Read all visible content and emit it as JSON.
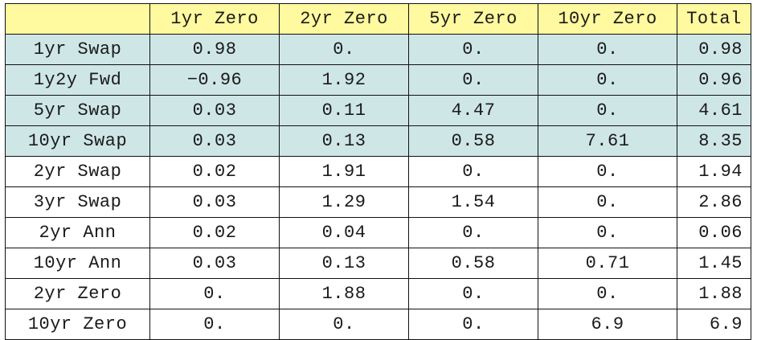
{
  "table": {
    "columns": [
      "",
      "1yr Zero",
      "2yr Zero",
      "5yr Zero",
      "10yr Zero",
      "Total"
    ],
    "rows": [
      {
        "label": "1yr Swap",
        "cells": [
          "0.98",
          "0.",
          "0.",
          "0.",
          "0.98"
        ],
        "highlight": true
      },
      {
        "label": "1y2y Fwd",
        "cells": [
          "−0.96",
          "1.92",
          "0.",
          "0.",
          "0.96"
        ],
        "highlight": true
      },
      {
        "label": "5yr Swap",
        "cells": [
          "0.03",
          "0.11",
          "4.47",
          "0.",
          "4.61"
        ],
        "highlight": true
      },
      {
        "label": "10yr Swap",
        "cells": [
          "0.03",
          "0.13",
          "0.58",
          "7.61",
          "8.35"
        ],
        "highlight": true
      },
      {
        "label": "2yr Swap",
        "cells": [
          "0.02",
          "1.91",
          "0.",
          "0.",
          "1.94"
        ],
        "highlight": false
      },
      {
        "label": "3yr Swap",
        "cells": [
          "0.03",
          "1.29",
          "1.54",
          "0.",
          "2.86"
        ],
        "highlight": false
      },
      {
        "label": "2yr Ann",
        "cells": [
          "0.02",
          "0.04",
          "0.",
          "0.",
          "0.06"
        ],
        "highlight": false
      },
      {
        "label": "10yr Ann",
        "cells": [
          "0.03",
          "0.13",
          "0.58",
          "0.71",
          "1.45"
        ],
        "highlight": false
      },
      {
        "label": "2yr Zero",
        "cells": [
          "0.",
          "1.88",
          "0.",
          "0.",
          "1.88"
        ],
        "highlight": false
      },
      {
        "label": "10yr Zero",
        "cells": [
          "0.",
          "0.",
          "0.",
          "6.9",
          "6.9"
        ],
        "highlight": false
      }
    ]
  },
  "colors": {
    "header_bg": "#fff9a0",
    "highlight_bg": "#cfe6e6",
    "border": "#111111"
  }
}
